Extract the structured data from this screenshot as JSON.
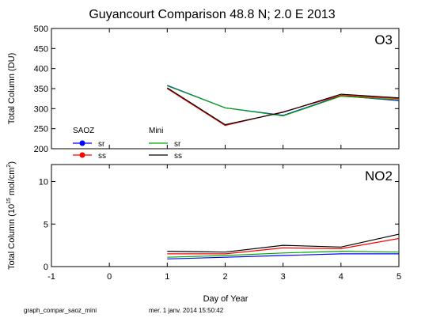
{
  "title": "Guyancourt  Comparison 48.8 N; 2.0 E   2013",
  "footer": {
    "left": "graph_compar_saoz_mini",
    "right": "mer. 1 janv. 2014 15:50:42"
  },
  "legend": {
    "group1": "SAOZ",
    "group2": "Mini",
    "items": [
      {
        "label": "sr",
        "color": "#0000ff",
        "marker": "dot"
      },
      {
        "label": "ss",
        "color": "#ff0000",
        "marker": "dot"
      },
      {
        "label": "sr",
        "color": "#00aa00",
        "marker": "line"
      },
      {
        "label": "ss",
        "color": "#000000",
        "marker": "line"
      }
    ]
  },
  "chart_data": [
    {
      "type": "line",
      "panel_label": "O3",
      "ylabel": "Total Column  (DU)",
      "ylim": [
        200,
        500
      ],
      "yticks": [
        200,
        250,
        300,
        350,
        400,
        450,
        500
      ],
      "xlim": [
        -1,
        5
      ],
      "series": [
        {
          "name": "SAOZ sr",
          "color": "#0000ff",
          "x": [
            1,
            2,
            3,
            4,
            5
          ],
          "values": [
            358,
            302,
            283,
            332,
            320
          ]
        },
        {
          "name": "SAOZ ss",
          "color": "#ff0000",
          "x": [
            1,
            2,
            3,
            4,
            5
          ],
          "values": [
            350,
            258,
            292,
            333,
            325
          ]
        },
        {
          "name": "Mini sr",
          "color": "#00aa00",
          "x": [
            1,
            2,
            3,
            4,
            5
          ],
          "values": [
            357,
            302,
            282,
            331,
            322
          ]
        },
        {
          "name": "Mini ss",
          "color": "#000000",
          "x": [
            1,
            2,
            3,
            4,
            5
          ],
          "values": [
            352,
            260,
            291,
            336,
            327
          ]
        }
      ]
    },
    {
      "type": "line",
      "panel_label": "NO2",
      "ylabel_parts": {
        "pre": "Total Column (10",
        "exp": "15",
        "mid": " mol/cm",
        "sup2": "2",
        "post": ")"
      },
      "ylim": [
        0,
        12
      ],
      "yticks": [
        0,
        5,
        10
      ],
      "xlabel": "Day of Year",
      "xlim": [
        -1,
        5
      ],
      "xticks": [
        -1,
        0,
        1,
        2,
        3,
        4,
        5
      ],
      "series": [
        {
          "name": "SAOZ sr",
          "color": "#0000ff",
          "x": [
            1,
            2,
            3,
            4,
            5
          ],
          "values": [
            0.9,
            1.1,
            1.3,
            1.5,
            1.5
          ]
        },
        {
          "name": "SAOZ ss",
          "color": "#ff0000",
          "x": [
            1,
            2,
            3,
            4,
            5
          ],
          "values": [
            1.5,
            1.5,
            2.2,
            2.1,
            3.3
          ]
        },
        {
          "name": "Mini sr",
          "color": "#00aa00",
          "x": [
            1,
            2,
            3,
            4,
            5
          ],
          "values": [
            1.1,
            1.3,
            1.6,
            1.8,
            1.7
          ]
        },
        {
          "name": "Mini ss",
          "color": "#000000",
          "x": [
            1,
            2,
            3,
            4,
            5
          ],
          "values": [
            1.8,
            1.7,
            2.5,
            2.3,
            3.8
          ]
        }
      ]
    }
  ]
}
